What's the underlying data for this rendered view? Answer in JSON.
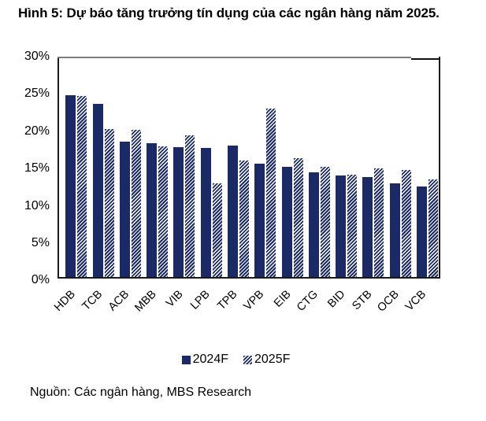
{
  "title": "Hình 5: Dự báo tăng trưởng tín dụng của các ngân hàng năm 2025.",
  "source": "Nguồn: Các ngân hàng, MBS Research",
  "chart_data": {
    "type": "bar",
    "title": "Hình 5: Dự báo tăng trưởng tín dụng của các ngân hàng năm 2025.",
    "categories": [
      "HDB",
      "TCB",
      "ACB",
      "MBB",
      "VIB",
      "LPB",
      "TPB",
      "VPB",
      "EIB",
      "CTG",
      "BID",
      "STB",
      "OCB",
      "VCB"
    ],
    "series": [
      {
        "name": "2024F",
        "style": "solid",
        "values": [
          24.8,
          23.6,
          18.4,
          18.2,
          17.7,
          17.6,
          17.9,
          15.4,
          15.0,
          14.2,
          13.8,
          13.6,
          12.8,
          12.3
        ]
      },
      {
        "name": "2025F",
        "style": "hatched",
        "values": [
          24.6,
          20.1,
          20.0,
          17.8,
          19.3,
          12.8,
          15.9,
          22.9,
          16.2,
          15.0,
          13.9,
          14.8,
          14.6,
          13.3
        ]
      }
    ],
    "ylim": [
      0,
      30
    ],
    "ytick_labels": [
      "30%",
      "25%",
      "20%",
      "15%",
      "10%",
      "5%",
      "0%"
    ],
    "grid": false,
    "legend_position": "bottom",
    "bar_color": "#1b2a67"
  }
}
